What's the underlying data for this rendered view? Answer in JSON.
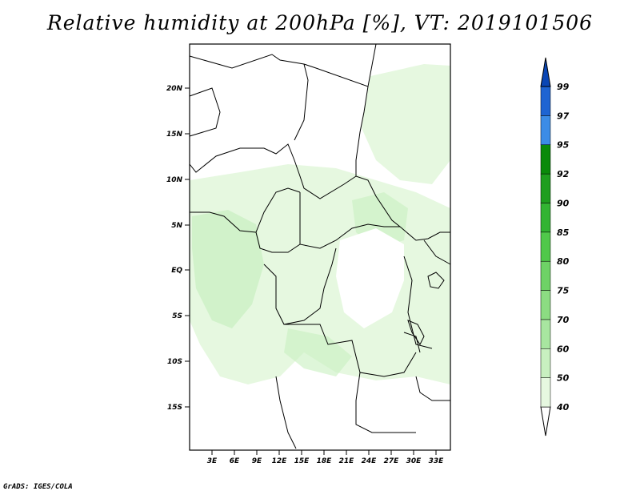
{
  "title": "Relative humidity at 200hPa [%], VT: 2019101506",
  "credit": "GrADS: IGES/COLA",
  "map": {
    "variable": "Relative humidity",
    "level": "200hPa",
    "unit": "%",
    "valid_time": "2019101506",
    "lat_ticks": [
      "20N",
      "15N",
      "10N",
      "5N",
      "EQ",
      "5S",
      "10S",
      "15S"
    ],
    "lon_ticks": [
      "3E",
      "6E",
      "9E",
      "12E",
      "15E",
      "18E",
      "21E",
      "24E",
      "27E",
      "30E",
      "33E"
    ],
    "colorbar": {
      "levels": [
        "40",
        "50",
        "60",
        "70",
        "75",
        "80",
        "85",
        "90",
        "92",
        "95",
        "97",
        "99"
      ],
      "colors": [
        "#ffffff",
        "#e6f8e0",
        "#c8f0c0",
        "#a8e6a0",
        "#8cdc82",
        "#6ed266",
        "#50c84a",
        "#32b432",
        "#1e9e1e",
        "#0a8a0a",
        "#3c8ce6",
        "#1e64d2",
        "#0a46b4"
      ]
    },
    "colors": {
      "land_border": "#000000",
      "humidity_light": "#e6f8e0",
      "humidity_mid": "#c8f0c0"
    }
  }
}
